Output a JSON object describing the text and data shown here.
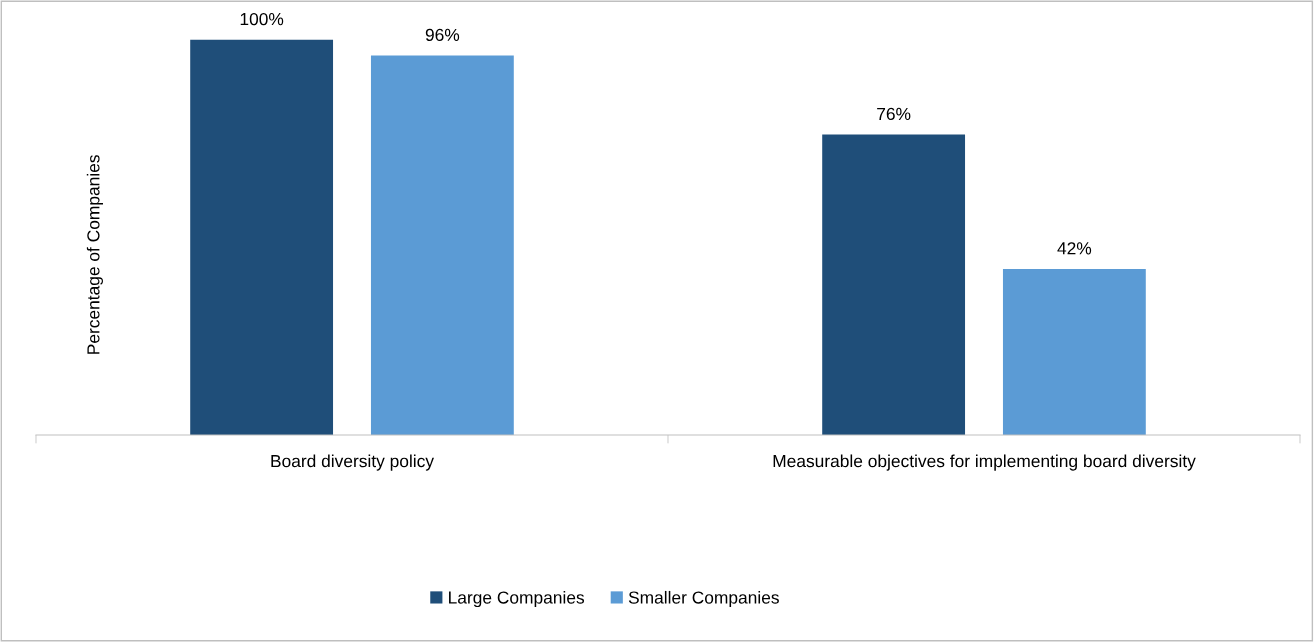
{
  "chart_data": {
    "type": "bar",
    "ylabel": "Percentage of Companies",
    "categories": [
      "Board diversity policy",
      "Measurable objectives for implementing board diversity"
    ],
    "series": [
      {
        "name": "Large Companies",
        "color": "#1f4e79",
        "values": [
          100,
          76
        ],
        "value_labels": [
          "100%",
          "76%"
        ]
      },
      {
        "name": "Smaller Companies",
        "color": "#5b9bd5",
        "values": [
          96,
          42
        ],
        "value_labels": [
          "96%",
          "42%"
        ]
      }
    ],
    "legend": "bottom"
  }
}
